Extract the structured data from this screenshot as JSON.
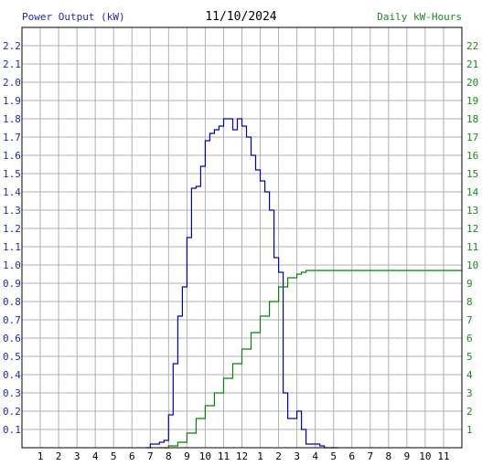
{
  "chart_data": {
    "type": "line",
    "title": "11/10/2024",
    "ylabel": "Power Output (kW)",
    "y2label": "Daily kW-Hours",
    "ylim": [
      0,
      2.3
    ],
    "y2lim": [
      0,
      23
    ],
    "xlim": [
      0,
      24
    ],
    "grid": true,
    "y_ticks": [
      "0.1",
      "0.2",
      "0.3",
      "0.4",
      "0.5",
      "0.6",
      "0.7",
      "0.8",
      "0.9",
      "1.0",
      "1.1",
      "1.2",
      "1.3",
      "1.4",
      "1.5",
      "1.6",
      "1.7",
      "1.8",
      "1.9",
      "2.0",
      "2.1",
      "2.2"
    ],
    "y2_ticks": [
      "1",
      "2",
      "3",
      "4",
      "5",
      "6",
      "7",
      "8",
      "9",
      "10",
      "11",
      "12",
      "13",
      "14",
      "15",
      "16",
      "17",
      "18",
      "19",
      "20",
      "21",
      "22"
    ],
    "x_ticks": [
      "1",
      "2",
      "3",
      "4",
      "5",
      "6",
      "7",
      "8",
      "9",
      "10",
      "11",
      "12",
      "1",
      "2",
      "3",
      "4",
      "5",
      "6",
      "7",
      "8",
      "9",
      "10",
      "11"
    ],
    "series": [
      {
        "color": "#0000cc",
        "axis": "left",
        "x": [
          6.75,
          7.0,
          7.25,
          7.5,
          7.75,
          8.0,
          8.25,
          8.5,
          8.75,
          9.0,
          9.25,
          9.5,
          9.75,
          10.0,
          10.25,
          10.5,
          10.75,
          11.0,
          11.25,
          11.5,
          11.75,
          12.0,
          12.25,
          12.5,
          12.75,
          13.0,
          13.25,
          13.5,
          13.75,
          14.0,
          14.25,
          14.5,
          14.75,
          15.0,
          15.25,
          15.5,
          15.75,
          16.0,
          16.25,
          16.5,
          16.75,
          17.0,
          17.25
        ],
        "y": [
          0.0,
          0.02,
          0.02,
          0.03,
          0.04,
          0.18,
          0.46,
          0.72,
          0.88,
          1.15,
          1.42,
          1.43,
          1.54,
          1.68,
          1.72,
          1.74,
          1.76,
          1.8,
          1.8,
          1.74,
          1.8,
          1.76,
          1.7,
          1.6,
          1.52,
          1.46,
          1.4,
          1.3,
          1.04,
          0.96,
          0.3,
          0.16,
          0.16,
          0.2,
          0.1,
          0.02,
          0.02,
          0.02,
          0.01,
          0.0,
          0.0,
          0.0,
          0.0
        ]
      },
      {
        "color": "#008800",
        "axis": "right",
        "x": [
          7.5,
          8.0,
          8.5,
          9.0,
          9.5,
          10.0,
          10.5,
          11.0,
          11.5,
          12.0,
          12.5,
          13.0,
          13.5,
          14.0,
          14.5,
          15.0,
          15.25,
          15.5,
          16.0,
          16.5,
          17.0,
          17.5,
          18,
          19,
          20,
          21,
          22,
          23,
          24
        ],
        "y": [
          0.0,
          0.1,
          0.3,
          0.8,
          1.6,
          2.3,
          3.0,
          3.8,
          4.6,
          5.4,
          6.3,
          7.2,
          8.0,
          8.8,
          9.3,
          9.5,
          9.6,
          9.7,
          9.7,
          9.7,
          9.7,
          9.7,
          9.7,
          9.7,
          9.7,
          9.7,
          9.7,
          9.7,
          9.7
        ]
      }
    ]
  }
}
